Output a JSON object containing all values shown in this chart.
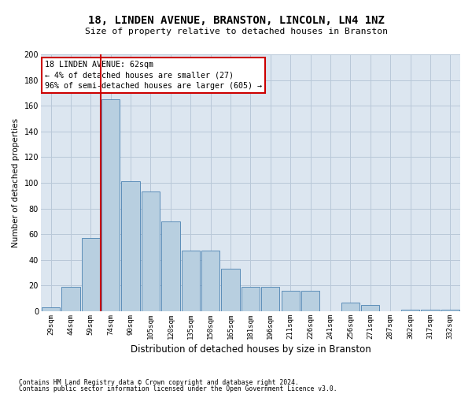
{
  "title1": "18, LINDEN AVENUE, BRANSTON, LINCOLN, LN4 1NZ",
  "title2": "Size of property relative to detached houses in Branston",
  "xlabel": "Distribution of detached houses by size in Branston",
  "ylabel": "Number of detached properties",
  "bar_labels": [
    "29sqm",
    "44sqm",
    "59sqm",
    "74sqm",
    "90sqm",
    "105sqm",
    "120sqm",
    "135sqm",
    "150sqm",
    "165sqm",
    "181sqm",
    "196sqm",
    "211sqm",
    "226sqm",
    "241sqm",
    "256sqm",
    "271sqm",
    "287sqm",
    "302sqm",
    "317sqm",
    "332sqm"
  ],
  "bar_values": [
    3,
    19,
    57,
    165,
    101,
    93,
    70,
    47,
    47,
    33,
    19,
    19,
    16,
    16,
    0,
    7,
    5,
    0,
    1,
    1,
    1
  ],
  "bar_color": "#b8cfe0",
  "bar_edgecolor": "#5b8db8",
  "bg_color": "#dce6f0",
  "grid_color": "#b8c8d8",
  "annotation_title": "18 LINDEN AVENUE: 62sqm",
  "annotation_line1": "← 4% of detached houses are smaller (27)",
  "annotation_line2": "96% of semi-detached houses are larger (605) →",
  "vline_x": 2.5,
  "ylim": [
    0,
    200
  ],
  "yticks": [
    0,
    20,
    40,
    60,
    80,
    100,
    120,
    140,
    160,
    180,
    200
  ],
  "footer1": "Contains HM Land Registry data © Crown copyright and database right 2024.",
  "footer2": "Contains public sector information licensed under the Open Government Licence v3.0."
}
